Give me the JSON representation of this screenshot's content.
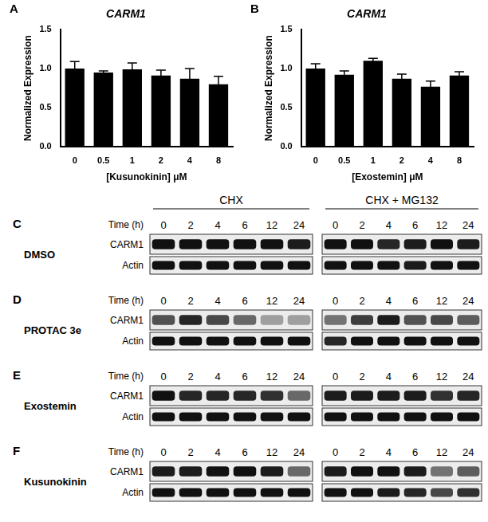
{
  "chart_data": [
    {
      "type": "bar",
      "panel": "A",
      "title": "CARM1",
      "x_label": "[Kusunokinin] μM",
      "y_label": "Normalized Expression",
      "categories": [
        0,
        0.5,
        1,
        2,
        4,
        8
      ],
      "values": [
        1.0,
        0.95,
        0.99,
        0.91,
        0.87,
        0.8
      ],
      "errors": [
        0.09,
        0.02,
        0.08,
        0.07,
        0.13,
        0.1
      ],
      "color": "#000000",
      "ylim": [
        0,
        1.5
      ],
      "yticks": [
        {
          "value": 0,
          "label": "0.0"
        },
        {
          "value": 0.5,
          "label": "0.5"
        },
        {
          "value": 1,
          "label": "1.0"
        },
        {
          "value": 1.5,
          "label": "1.5"
        }
      ],
      "grid": false
    },
    {
      "type": "bar",
      "panel": "B",
      "title": "CARM1",
      "x_label": "[Exostemin] μM",
      "y_label": "Normalized Expression",
      "categories": [
        0,
        0.5,
        1,
        2,
        4,
        8
      ],
      "values": [
        1.0,
        0.92,
        1.1,
        0.87,
        0.77,
        0.91
      ],
      "errors": [
        0.06,
        0.05,
        0.03,
        0.06,
        0.07,
        0.05
      ],
      "color": "#000000",
      "ylim": [
        0,
        1.5
      ],
      "yticks": [
        {
          "value": 0,
          "label": "0.0"
        },
        {
          "value": 0.5,
          "label": "0.5"
        },
        {
          "value": 1,
          "label": "1.0"
        },
        {
          "value": 1.5,
          "label": "1.5"
        }
      ],
      "grid": false
    }
  ],
  "blots": {
    "groups": [
      "CHX",
      "CHX + MG132"
    ],
    "time_label": "Time (h)",
    "times": [
      0,
      2,
      4,
      6,
      12,
      24
    ],
    "panels": [
      {
        "letter": "C",
        "treatment": "DMSO",
        "rows": [
          {
            "label": "CARM1",
            "intensity": [
              [
                1,
                1,
                1,
                1,
                1,
                0.95
              ],
              [
                1,
                1,
                0.9,
                0.95,
                1,
                0.95
              ]
            ]
          },
          {
            "label": "Actin",
            "intensity": [
              [
                1,
                1,
                1,
                1,
                1,
                1
              ],
              [
                1,
                1,
                1,
                0.95,
                1,
                1
              ]
            ]
          }
        ]
      },
      {
        "letter": "D",
        "treatment": "PROTAC 3e",
        "rows": [
          {
            "label": "CARM1",
            "intensity": [
              [
                0.7,
                0.9,
                0.75,
                0.6,
                0.35,
                0.35
              ],
              [
                0.55,
                0.8,
                0.95,
                0.7,
                0.75,
                0.65
              ]
            ]
          },
          {
            "label": "Actin",
            "intensity": [
              [
                1,
                1,
                1,
                1,
                1,
                1
              ],
              [
                0.9,
                1,
                1,
                1,
                1,
                1
              ]
            ]
          }
        ]
      },
      {
        "letter": "E",
        "treatment": "Exostemin",
        "rows": [
          {
            "label": "CARM1",
            "intensity": [
              [
                1,
                0.9,
                0.9,
                0.9,
                0.85,
                0.6
              ],
              [
                0.95,
                0.95,
                0.95,
                0.95,
                0.85,
                0.9
              ]
            ]
          },
          {
            "label": "Actin",
            "intensity": [
              [
                1,
                1,
                1,
                1,
                1,
                1
              ],
              [
                1,
                1,
                1,
                1,
                1,
                1
              ]
            ]
          }
        ]
      },
      {
        "letter": "F",
        "treatment": "Kusunokinin",
        "rows": [
          {
            "label": "CARM1",
            "intensity": [
              [
                0.95,
                0.95,
                1,
                1,
                0.95,
                0.6
              ],
              [
                0.95,
                1,
                1,
                0.95,
                0.55,
                0.65
              ]
            ]
          },
          {
            "label": "Actin",
            "intensity": [
              [
                1,
                1,
                1,
                1,
                1,
                1
              ],
              [
                1,
                1,
                0.95,
                0.9,
                0.75,
                0.85
              ]
            ]
          }
        ]
      }
    ]
  }
}
